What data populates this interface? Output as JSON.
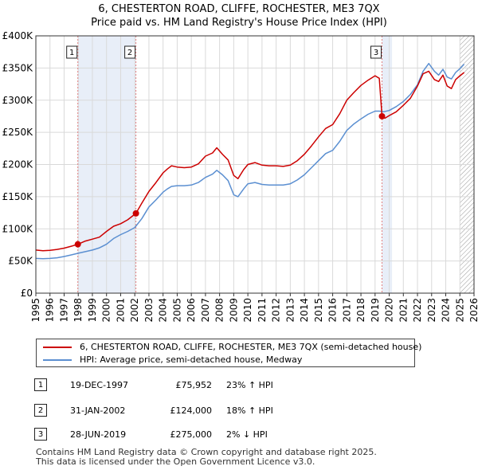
{
  "title_line1": "6, CHESTERTON ROAD, CLIFFE, ROCHESTER, ME3 7QX",
  "title_line2": "Price paid vs. HM Land Registry's House Price Index (HPI)",
  "colors": {
    "property": "#cc0000",
    "hpi": "#5b8fd1",
    "shade": "#e8eef8",
    "grid": "#d9d9d9",
    "vline": "#e08080"
  },
  "chart_data": {
    "type": "line",
    "ylim": [
      0,
      400000
    ],
    "xlim": [
      1995,
      2026
    ],
    "yticks": [
      0,
      50000,
      100000,
      150000,
      200000,
      250000,
      300000,
      350000,
      400000
    ],
    "ytick_labels": [
      "£0",
      "£50K",
      "£100K",
      "£150K",
      "£200K",
      "£250K",
      "£300K",
      "£350K",
      "£400K"
    ],
    "xtick_labels": [
      "1995",
      "1996",
      "1997",
      "1998",
      "1999",
      "2000",
      "2001",
      "2002",
      "2003",
      "2004",
      "2005",
      "2006",
      "2007",
      "2008",
      "2009",
      "2010",
      "2011",
      "2012",
      "2013",
      "2014",
      "2015",
      "2016",
      "2017",
      "2018",
      "2019",
      "2020",
      "2021",
      "2022",
      "2023",
      "2024",
      "2025",
      "2026"
    ],
    "hatch_from": 2025.0,
    "shaded_spans": [
      [
        1997.97,
        2002.08
      ],
      [
        2019.49,
        2020.2
      ]
    ],
    "series": [
      {
        "name": "6, CHESTERTON ROAD, CLIFFE, ROCHESTER, ME3 7QX (semi-detached house)",
        "x": [
          1995.0,
          1995.5,
          1996.0,
          1996.5,
          1997.0,
          1997.5,
          1997.97,
          1998.5,
          1999.0,
          1999.5,
          2000.0,
          2000.5,
          2001.0,
          2001.5,
          2002.08,
          2002.5,
          2003.0,
          2003.5,
          2004.0,
          2004.3,
          2004.6,
          2005.0,
          2005.5,
          2006.0,
          2006.5,
          2007.0,
          2007.5,
          2007.8,
          2008.2,
          2008.6,
          2009.0,
          2009.3,
          2009.7,
          2010.0,
          2010.5,
          2011.0,
          2011.5,
          2012.0,
          2012.5,
          2013.0,
          2013.5,
          2014.0,
          2014.5,
          2015.0,
          2015.5,
          2016.0,
          2016.5,
          2017.0,
          2017.5,
          2018.0,
          2018.5,
          2019.0,
          2019.3,
          2019.49,
          2019.7,
          2020.0,
          2020.5,
          2021.0,
          2021.5,
          2022.0,
          2022.4,
          2022.8,
          2023.2,
          2023.5,
          2023.8,
          2024.1,
          2024.4,
          2024.7,
          2025.0,
          2025.3
        ],
        "y": [
          67000,
          66000,
          66500,
          68000,
          70000,
          73000,
          75952,
          81000,
          84000,
          87000,
          96000,
          104000,
          108000,
          114000,
          124000,
          140000,
          158000,
          172000,
          187000,
          193000,
          198000,
          196000,
          195000,
          196000,
          201000,
          213000,
          218000,
          226000,
          216000,
          207000,
          183000,
          178000,
          192000,
          200000,
          203000,
          199000,
          198000,
          198000,
          197000,
          199000,
          206000,
          216000,
          229000,
          243000,
          256000,
          262000,
          279000,
          300000,
          312000,
          323000,
          331000,
          338000,
          334000,
          275000,
          272000,
          276000,
          282000,
          292000,
          303000,
          322000,
          341000,
          345000,
          332000,
          329000,
          339000,
          322000,
          318000,
          332000,
          338000,
          343000
        ]
      },
      {
        "name": "HPI: Average price, semi-detached house, Medway",
        "x": [
          1995.0,
          1995.5,
          1996.0,
          1996.5,
          1997.0,
          1997.5,
          1998.0,
          1998.5,
          1999.0,
          1999.5,
          2000.0,
          2000.5,
          2001.0,
          2001.5,
          2002.0,
          2002.5,
          2003.0,
          2003.5,
          2004.0,
          2004.3,
          2004.6,
          2005.0,
          2005.5,
          2006.0,
          2006.5,
          2007.0,
          2007.5,
          2007.8,
          2008.2,
          2008.6,
          2009.0,
          2009.3,
          2009.7,
          2010.0,
          2010.5,
          2011.0,
          2011.5,
          2012.0,
          2012.5,
          2013.0,
          2013.5,
          2014.0,
          2014.5,
          2015.0,
          2015.5,
          2016.0,
          2016.5,
          2017.0,
          2017.5,
          2018.0,
          2018.5,
          2019.0,
          2019.3,
          2019.6,
          2020.0,
          2020.5,
          2021.0,
          2021.5,
          2022.0,
          2022.4,
          2022.8,
          2023.2,
          2023.5,
          2023.8,
          2024.1,
          2024.4,
          2024.7,
          2025.0,
          2025.3
        ],
        "y": [
          54000,
          53500,
          54000,
          55000,
          57000,
          59500,
          62000,
          64500,
          67000,
          70500,
          76000,
          85000,
          91000,
          96000,
          102000,
          116000,
          134000,
          145000,
          157000,
          162000,
          166000,
          167000,
          167000,
          168000,
          172000,
          180000,
          185000,
          191000,
          184000,
          175000,
          153000,
          150000,
          162000,
          170000,
          172000,
          169000,
          168000,
          168000,
          168000,
          170000,
          176000,
          184000,
          195000,
          206000,
          217000,
          222000,
          236000,
          253000,
          263000,
          271000,
          278000,
          283000,
          283000,
          282000,
          284000,
          290000,
          298000,
          309000,
          324000,
          345000,
          357000,
          345000,
          339000,
          348000,
          336000,
          333000,
          343000,
          349000,
          356000
        ]
      }
    ],
    "purchases": [
      {
        "x": 1997.97,
        "y": 75952,
        "label": "1"
      },
      {
        "x": 2002.08,
        "y": 124000,
        "label": "2"
      },
      {
        "x": 2019.49,
        "y": 275000,
        "label": "3"
      }
    ]
  },
  "legend": {
    "property_label": "6, CHESTERTON ROAD, CLIFFE, ROCHESTER, ME3 7QX (semi-detached house)",
    "hpi_label": "HPI: Average price, semi-detached house, Medway"
  },
  "transactions": [
    {
      "num": "1",
      "date": "19-DEC-1997",
      "price": "£75,952",
      "hpi": "23% ↑ HPI"
    },
    {
      "num": "2",
      "date": "31-JAN-2002",
      "price": "£124,000",
      "hpi": "18% ↑ HPI"
    },
    {
      "num": "3",
      "date": "28-JUN-2019",
      "price": "£275,000",
      "hpi": "2% ↓ HPI"
    }
  ],
  "footer_line1": "Contains HM Land Registry data © Crown copyright and database right 2025.",
  "footer_line2": "This data is licensed under the Open Government Licence v3.0."
}
